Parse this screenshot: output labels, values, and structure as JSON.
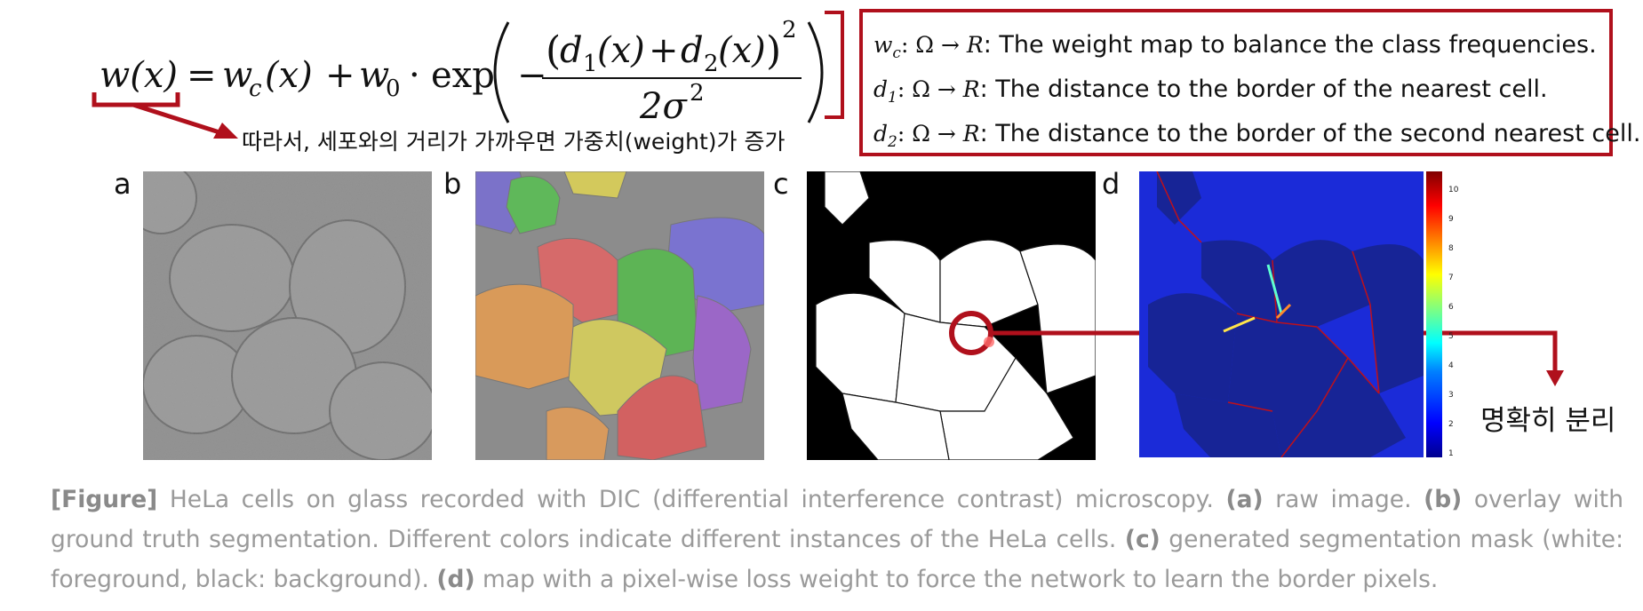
{
  "formula": {
    "lhs": "w(x)",
    "eq": "=",
    "term1": "w",
    "term1_sub": "c",
    "term1_arg": "(x)",
    "plus": "+",
    "term2": "w",
    "term2_sub": "0",
    "dot": "·",
    "exp": "exp",
    "minus": "−",
    "num_open": "(",
    "d1": "d",
    "d1_sub": "1",
    "d1_arg": "(x)",
    "num_plus": "+",
    "d2": "d",
    "d2_sub": "2",
    "d2_arg": "(x)",
    "num_close": ")",
    "num_pow": "2",
    "den": "2σ",
    "den_pow": "2"
  },
  "definitions": [
    {
      "sym": "w",
      "sub": "c",
      "map": ": Ω → ",
      "R": "R",
      "text": ": The weight map to balance the class frequencies."
    },
    {
      "sym": "d",
      "sub": "1",
      "map": ": Ω → ",
      "R": "R",
      "text": ": The distance to the border of the nearest cell."
    },
    {
      "sym": "d",
      "sub": "2",
      "map": ": Ω → ",
      "R": "R",
      "text": ": The distance to the border of the second nearest cell."
    }
  ],
  "note": "따라서, 세포와의 거리가 가까우면 가중치(weight)가 증가",
  "panels": {
    "a": "a",
    "b": "b",
    "c": "c",
    "d": "d"
  },
  "colorbar_ticks": [
    "10",
    "9",
    "8",
    "7",
    "6",
    "5",
    "4",
    "3",
    "2",
    "1"
  ],
  "separation_label": "명확히 분리",
  "caption": {
    "fig": "[Figure]",
    "intro": " HeLa cells on glass recorded with DIC (differential interference contrast) microscopy. ",
    "a_tag": "(a)",
    "a_text": " raw image. ",
    "b_tag": "(b)",
    "b_text": " overlay with ground truth segmentation. Different colors indicate different instances of the HeLa cells. ",
    "c_tag": "(c)",
    "c_text": " generated segmentation mask (white: foreground, black: background). ",
    "d_tag": "(d)",
    "d_text": " map with a pixel-wise loss weight to force the network to learn the border pixels."
  },
  "colors": {
    "accent_red": "#b0101c",
    "caption_gray": "#9a9a9a"
  }
}
